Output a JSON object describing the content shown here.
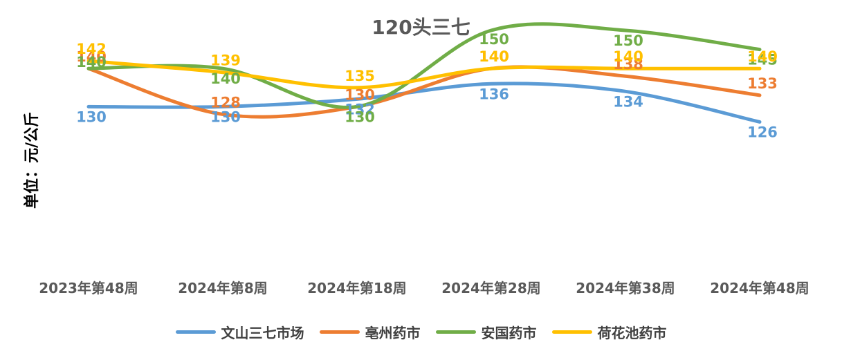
{
  "chart_data": {
    "type": "line",
    "title": "120头三七",
    "ylabel": "单位：元/公斤",
    "xlabel": "",
    "categories": [
      "2023年第48周",
      "2024年第8周",
      "2024年第18周",
      "2024年第28周",
      "2024年第38周",
      "2024年第48周"
    ],
    "ylim": [
      100,
      150
    ],
    "grid": false,
    "smooth": true,
    "legend_position": "bottom",
    "series": [
      {
        "name": "文山三七市场",
        "color": "#5B9BD5",
        "values": [
          130,
          130,
          132,
          136,
          134,
          126
        ]
      },
      {
        "name": "亳州药市",
        "color": "#ED7D31",
        "values": [
          140,
          128,
          130,
          140,
          138,
          133
        ]
      },
      {
        "name": "安国药市",
        "color": "#70AD47",
        "values": [
          140,
          140,
          130,
          150,
          150,
          145
        ]
      },
      {
        "name": "荷花池药市",
        "color": "#FFC000",
        "values": [
          142,
          139,
          135,
          140,
          140,
          140
        ]
      }
    ]
  }
}
